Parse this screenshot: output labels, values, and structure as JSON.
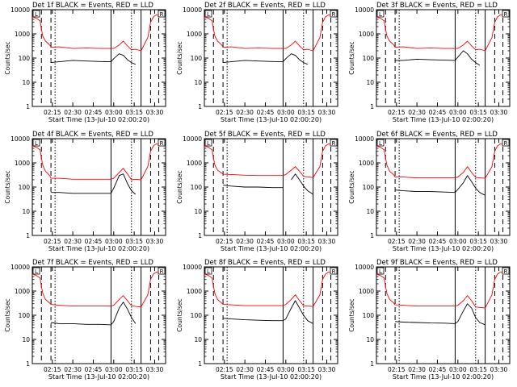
{
  "chart_data": {
    "type": "line",
    "layout": "3x3 grid",
    "ylabel": "Counts/sec",
    "xlabel": "Start Time (13-Jul-10 02:00:20)",
    "yscale": "log",
    "ylim": [
      1,
      10000
    ],
    "ytick_labels": [
      "1",
      "10",
      "100",
      "1000",
      "10000"
    ],
    "ytick_values": [
      1,
      10,
      100,
      1000,
      10000
    ],
    "xlim": [
      "02:00:20",
      "03:38:00"
    ],
    "xtick_labels": [
      "02:15",
      "02:30",
      "02:45",
      "03:00",
      "03:15",
      "03:30"
    ],
    "xtick_values": [
      "02:15",
      "02:30",
      "02:45",
      "03:00",
      "03:15",
      "03:30"
    ],
    "vertical_markers": {
      "dashed": [
        "02:07",
        "02:14",
        "03:27",
        "03:33"
      ],
      "dotted": [
        "02:17",
        "03:13"
      ],
      "solid": [
        "02:58",
        "03:20"
      ]
    },
    "legend_boxes": [
      "L",
      "R"
    ],
    "series_colors": {
      "events": "#000000",
      "lld": "#ff0000"
    },
    "time_points": [
      "02:00:20",
      "02:03",
      "02:06",
      "02:07",
      "02:08",
      "02:10",
      "02:13",
      "02:14",
      "02:20",
      "02:30",
      "02:40",
      "02:50",
      "02:58",
      "03:00",
      "03:04",
      "03:07",
      "03:10",
      "03:13",
      "03:16",
      "03:20",
      "03:25",
      "03:27",
      "03:29",
      "03:31",
      "03:33"
    ],
    "panels": [
      {
        "title": "Det 1f BLACK = Events, RED = LLD",
        "events": [
          null,
          null,
          null,
          null,
          null,
          null,
          null,
          65,
          70,
          80,
          75,
          72,
          70,
          95,
          150,
          130,
          85,
          65,
          55,
          null,
          null,
          null,
          null,
          null,
          null
        ],
        "lld": [
          5000,
          4500,
          3500,
          1500,
          800,
          500,
          350,
          280,
          290,
          250,
          260,
          250,
          250,
          250,
          350,
          500,
          320,
          220,
          230,
          200,
          700,
          3000,
          5000,
          6000,
          6000
        ]
      },
      {
        "title": "Det 2f BLACK = Events, RED = LLD",
        "events": [
          null,
          null,
          null,
          null,
          null,
          null,
          null,
          65,
          70,
          80,
          75,
          72,
          70,
          95,
          150,
          130,
          85,
          65,
          55,
          null,
          null,
          null,
          null,
          null,
          null
        ],
        "lld": [
          5000,
          4500,
          3500,
          1500,
          800,
          500,
          350,
          280,
          290,
          250,
          260,
          250,
          250,
          250,
          350,
          500,
          320,
          220,
          230,
          200,
          700,
          3000,
          5000,
          6000,
          6000
        ]
      },
      {
        "title": "Det 3f BLACK = Events, RED = LLD",
        "events": [
          null,
          null,
          null,
          null,
          null,
          null,
          null,
          80,
          80,
          90,
          85,
          82,
          80,
          110,
          200,
          150,
          90,
          65,
          50,
          null,
          null,
          null,
          null,
          null,
          null
        ],
        "lld": [
          5000,
          4500,
          3500,
          1500,
          800,
          500,
          350,
          280,
          290,
          250,
          260,
          250,
          250,
          250,
          350,
          500,
          320,
          220,
          230,
          200,
          700,
          3000,
          5000,
          6000,
          6000
        ]
      },
      {
        "title": "Det 4f BLACK = Events, RED = LLD",
        "events": [
          null,
          null,
          null,
          null,
          null,
          null,
          null,
          60,
          60,
          55,
          55,
          55,
          55,
          90,
          300,
          350,
          140,
          70,
          50,
          null,
          null,
          null,
          null,
          null,
          null
        ],
        "lld": [
          5000,
          4500,
          3500,
          1500,
          800,
          450,
          300,
          230,
          230,
          210,
          210,
          210,
          210,
          230,
          400,
          600,
          350,
          200,
          210,
          200,
          700,
          3000,
          5000,
          6000,
          6000
        ]
      },
      {
        "title": "Det 5f BLACK = Events, RED = LLD",
        "events": [
          null,
          null,
          null,
          null,
          null,
          null,
          null,
          120,
          110,
          100,
          100,
          95,
          95,
          null,
          200,
          350,
          200,
          110,
          70,
          50,
          null,
          null,
          null,
          null,
          null
        ],
        "lld": [
          5000,
          4500,
          3500,
          1500,
          800,
          500,
          380,
          340,
          330,
          310,
          300,
          300,
          300,
          330,
          500,
          700,
          450,
          280,
          260,
          250,
          700,
          3000,
          5000,
          6000,
          6000
        ]
      },
      {
        "title": "Det 6f BLACK = Events, RED = LLD",
        "events": [
          null,
          null,
          null,
          null,
          null,
          null,
          null,
          75,
          70,
          65,
          65,
          62,
          60,
          80,
          150,
          300,
          170,
          90,
          60,
          45,
          null,
          null,
          null,
          null,
          null
        ],
        "lld": [
          5000,
          4500,
          3500,
          1500,
          800,
          450,
          320,
          260,
          260,
          240,
          240,
          240,
          240,
          260,
          400,
          700,
          400,
          250,
          240,
          230,
          700,
          3000,
          5000,
          6000,
          6000
        ]
      },
      {
        "title": "Det 7f BLACK = Events, RED = LLD",
        "events": [
          null,
          null,
          null,
          null,
          null,
          null,
          null,
          50,
          45,
          45,
          42,
          42,
          40,
          55,
          200,
          350,
          180,
          80,
          45,
          null,
          null,
          null,
          null,
          null,
          null
        ],
        "lld": [
          5000,
          4500,
          3500,
          1500,
          800,
          450,
          320,
          280,
          260,
          240,
          240,
          240,
          240,
          260,
          450,
          650,
          400,
          250,
          230,
          220,
          700,
          3000,
          5000,
          6000,
          6000
        ]
      },
      {
        "title": "Det 8f BLACK = Events, RED = LLD",
        "events": [
          null,
          null,
          null,
          null,
          null,
          null,
          null,
          75,
          70,
          65,
          62,
          60,
          60,
          70,
          200,
          400,
          200,
          100,
          60,
          45,
          null,
          null,
          null,
          null,
          null
        ],
        "lld": [
          5000,
          4500,
          3500,
          1500,
          800,
          450,
          320,
          280,
          270,
          250,
          250,
          250,
          250,
          280,
          450,
          700,
          400,
          250,
          240,
          230,
          700,
          3000,
          5000,
          6000,
          6000
        ]
      },
      {
        "title": "Det 9f BLACK = Events, RED = LLD",
        "events": [
          null,
          null,
          null,
          null,
          null,
          null,
          null,
          55,
          52,
          50,
          48,
          47,
          45,
          55,
          150,
          300,
          200,
          80,
          50,
          40,
          null,
          null,
          null,
          null,
          null
        ],
        "lld": [
          5000,
          4500,
          3500,
          1500,
          800,
          450,
          320,
          270,
          260,
          240,
          240,
          240,
          240,
          260,
          400,
          650,
          400,
          220,
          210,
          200,
          700,
          3000,
          5000,
          6000,
          6000
        ]
      }
    ]
  }
}
